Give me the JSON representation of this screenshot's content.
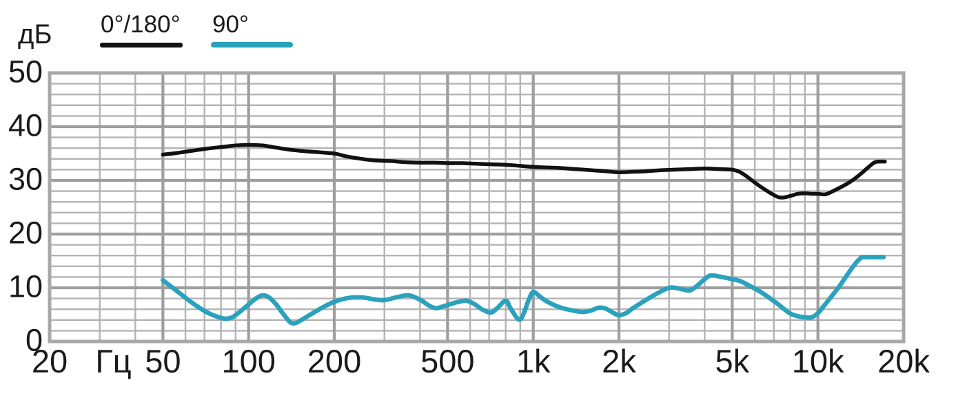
{
  "chart": {
    "y_unit": "дБ"
  },
  "legend": {
    "items": [
      {
        "id": "legend-0-180",
        "label": "0°/180°",
        "color": "#111111"
      },
      {
        "id": "legend-90",
        "label": "90°",
        "color": "#2aa2bd"
      }
    ]
  },
  "chart_data": {
    "type": "line",
    "title": "",
    "x_scale": "log",
    "x_unit": "Гц",
    "y_unit": "дБ",
    "xlim": [
      20,
      20000
    ],
    "ylim": [
      0,
      50
    ],
    "y_major_step": 10,
    "y_minor_step": 2,
    "grid": true,
    "legend_position": "top-left",
    "colors": {
      "grid_minor": "#b3b3b3",
      "grid_major": "#9e9e9e",
      "border": "#a8a8a8",
      "text": "#1a1a1a"
    },
    "x_ticks": [
      {
        "label": "20",
        "f": 20
      },
      {
        "label": "Гц",
        "f": 33.5
      },
      {
        "label": "50",
        "f": 50
      },
      {
        "label": "100",
        "f": 100
      },
      {
        "label": "200",
        "f": 200
      },
      {
        "label": "500",
        "f": 500
      },
      {
        "label": "1k",
        "f": 1000
      },
      {
        "label": "2k",
        "f": 2000
      },
      {
        "label": "5k",
        "f": 5000
      },
      {
        "label": "10k",
        "f": 10000
      },
      {
        "label": "20k",
        "f": 20000
      }
    ],
    "y_ticks": [
      50,
      40,
      30,
      20,
      10,
      0
    ],
    "series": [
      {
        "id": "curve-0-180",
        "name": "0°/180°",
        "color": "#111111",
        "width": 5.5,
        "points": [
          [
            50,
            34.8
          ],
          [
            56,
            35.1
          ],
          [
            63,
            35.5
          ],
          [
            71,
            35.9
          ],
          [
            80,
            36.2
          ],
          [
            90,
            36.5
          ],
          [
            100,
            36.6
          ],
          [
            112,
            36.5
          ],
          [
            125,
            36.1
          ],
          [
            140,
            35.7
          ],
          [
            160,
            35.4
          ],
          [
            180,
            35.2
          ],
          [
            200,
            35.0
          ],
          [
            212,
            34.7
          ],
          [
            224,
            34.4
          ],
          [
            250,
            34.0
          ],
          [
            280,
            33.7
          ],
          [
            315,
            33.6
          ],
          [
            355,
            33.4
          ],
          [
            400,
            33.3
          ],
          [
            450,
            33.3
          ],
          [
            500,
            33.2
          ],
          [
            560,
            33.2
          ],
          [
            630,
            33.1
          ],
          [
            710,
            33.0
          ],
          [
            800,
            32.9
          ],
          [
            900,
            32.7
          ],
          [
            1000,
            32.5
          ],
          [
            1120,
            32.4
          ],
          [
            1250,
            32.3
          ],
          [
            1400,
            32.1
          ],
          [
            1600,
            31.9
          ],
          [
            1800,
            31.7
          ],
          [
            2000,
            31.5
          ],
          [
            2240,
            31.6
          ],
          [
            2500,
            31.7
          ],
          [
            2800,
            31.9
          ],
          [
            3150,
            32.0
          ],
          [
            3550,
            32.1
          ],
          [
            4000,
            32.2
          ],
          [
            4500,
            32.1
          ],
          [
            5000,
            32.0
          ],
          [
            5300,
            31.6
          ],
          [
            5600,
            30.8
          ],
          [
            6300,
            28.8
          ],
          [
            7100,
            27.1
          ],
          [
            7500,
            26.8
          ],
          [
            8000,
            27.1
          ],
          [
            8500,
            27.5
          ],
          [
            9000,
            27.6
          ],
          [
            9500,
            27.5
          ],
          [
            10000,
            27.5
          ],
          [
            10600,
            27.4
          ],
          [
            11200,
            27.9
          ],
          [
            12500,
            29.2
          ],
          [
            13300,
            30.1
          ],
          [
            14200,
            31.3
          ],
          [
            15000,
            32.4
          ],
          [
            15900,
            33.4
          ],
          [
            17200,
            33.5
          ]
        ]
      },
      {
        "id": "curve-90",
        "name": "90°",
        "color": "#2aa2bd",
        "width": 6.5,
        "points": [
          [
            50,
            11.4
          ],
          [
            56,
            9.4
          ],
          [
            63,
            7.3
          ],
          [
            71,
            5.5
          ],
          [
            80,
            4.4
          ],
          [
            85,
            4.3
          ],
          [
            90,
            4.9
          ],
          [
            100,
            6.9
          ],
          [
            106,
            8.0
          ],
          [
            112,
            8.6
          ],
          [
            118,
            8.2
          ],
          [
            125,
            6.9
          ],
          [
            132,
            5.2
          ],
          [
            140,
            3.6
          ],
          [
            145,
            3.4
          ],
          [
            150,
            3.7
          ],
          [
            160,
            4.6
          ],
          [
            180,
            6.2
          ],
          [
            200,
            7.4
          ],
          [
            224,
            8.1
          ],
          [
            250,
            8.2
          ],
          [
            280,
            7.8
          ],
          [
            300,
            7.7
          ],
          [
            335,
            8.3
          ],
          [
            365,
            8.6
          ],
          [
            400,
            7.8
          ],
          [
            430,
            6.7
          ],
          [
            455,
            6.2
          ],
          [
            480,
            6.5
          ],
          [
            530,
            7.2
          ],
          [
            580,
            7.6
          ],
          [
            620,
            7.0
          ],
          [
            660,
            6.0
          ],
          [
            710,
            5.4
          ],
          [
            750,
            6.3
          ],
          [
            800,
            7.6
          ],
          [
            830,
            6.3
          ],
          [
            870,
            4.6
          ],
          [
            900,
            4.1
          ],
          [
            930,
            5.5
          ],
          [
            965,
            7.8
          ],
          [
            1000,
            9.2
          ],
          [
            1060,
            8.3
          ],
          [
            1120,
            7.4
          ],
          [
            1250,
            6.3
          ],
          [
            1400,
            5.7
          ],
          [
            1500,
            5.5
          ],
          [
            1600,
            5.8
          ],
          [
            1700,
            6.3
          ],
          [
            1800,
            6.1
          ],
          [
            1900,
            5.4
          ],
          [
            2000,
            4.9
          ],
          [
            2120,
            5.3
          ],
          [
            2240,
            6.2
          ],
          [
            2500,
            7.8
          ],
          [
            2800,
            9.3
          ],
          [
            3000,
            10.0
          ],
          [
            3150,
            10.0
          ],
          [
            3350,
            9.7
          ],
          [
            3550,
            9.5
          ],
          [
            3750,
            10.3
          ],
          [
            4000,
            11.6
          ],
          [
            4200,
            12.3
          ],
          [
            4500,
            12.1
          ],
          [
            5000,
            11.6
          ],
          [
            5300,
            11.3
          ],
          [
            5600,
            10.7
          ],
          [
            6300,
            9.2
          ],
          [
            7100,
            7.3
          ],
          [
            7500,
            6.3
          ],
          [
            8000,
            5.2
          ],
          [
            8500,
            4.7
          ],
          [
            9000,
            4.5
          ],
          [
            9500,
            4.5
          ],
          [
            10000,
            5.3
          ],
          [
            10600,
            6.9
          ],
          [
            11200,
            8.5
          ],
          [
            11900,
            10.3
          ],
          [
            12600,
            12.2
          ],
          [
            13400,
            14.2
          ],
          [
            14100,
            15.5
          ],
          [
            14500,
            15.7
          ],
          [
            17000,
            15.7
          ]
        ]
      }
    ]
  }
}
